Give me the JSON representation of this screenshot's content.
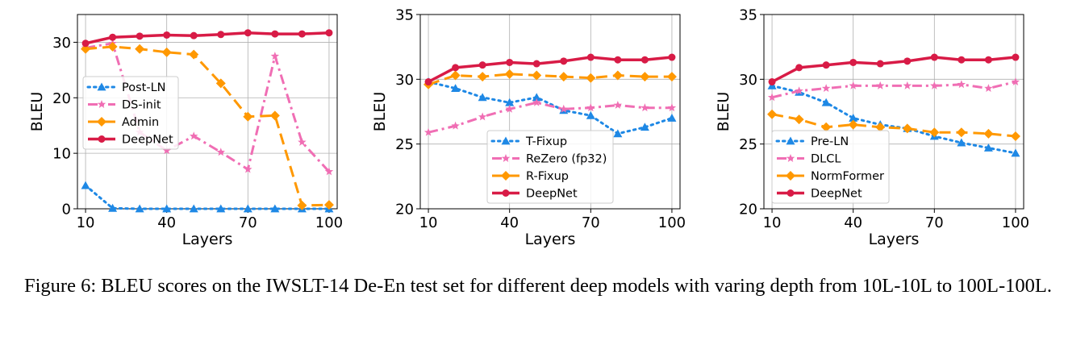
{
  "caption": "Figure 6: BLEU scores on the IWSLT-14 De-En test set for different deep models with varing depth from 10L-10L to 100L-100L.",
  "colors": {
    "blue": "#1e88e5",
    "pink": "#f06eb4",
    "orange": "#ff9800",
    "crimson": "#d81b46"
  },
  "chart_data": [
    {
      "type": "line",
      "xlabel": "Layers",
      "ylabel": "BLEU",
      "x": [
        10,
        20,
        30,
        40,
        50,
        60,
        70,
        80,
        90,
        100
      ],
      "xticks": [
        10,
        40,
        70,
        100
      ],
      "xticklabels": [
        "10",
        "40",
        "70",
        "100"
      ],
      "xlim": [
        7,
        103
      ],
      "ylim": [
        0,
        35
      ],
      "yticks": [
        0,
        10,
        20,
        30
      ],
      "yticklabels": [
        "0",
        "10",
        "20",
        "30"
      ],
      "legend": "center-left",
      "series": [
        {
          "name": "Post-LN",
          "style": "dotted",
          "marker": "triangle",
          "color": "#1e88e5",
          "values": [
            4.2,
            0.1,
            0.0,
            0.0,
            0.0,
            0.0,
            0.0,
            0.0,
            0.0,
            0.0
          ]
        },
        {
          "name": "DS-init",
          "style": "dashdot",
          "marker": "star",
          "color": "#f06eb4",
          "values": [
            29.0,
            29.8,
            13.8,
            10.5,
            13.1,
            10.2,
            7.1,
            27.5,
            12.0,
            6.7
          ]
        },
        {
          "name": "Admin",
          "style": "dashed",
          "marker": "diamond",
          "color": "#ff9800",
          "values": [
            28.8,
            29.2,
            28.8,
            28.2,
            27.8,
            22.6,
            16.6,
            16.8,
            0.6,
            0.7
          ]
        },
        {
          "name": "DeepNet",
          "style": "solid",
          "marker": "circle",
          "color": "#d81b46",
          "values": [
            29.8,
            30.9,
            31.1,
            31.3,
            31.2,
            31.4,
            31.7,
            31.5,
            31.5,
            31.7
          ]
        }
      ]
    },
    {
      "type": "line",
      "xlabel": "Layers",
      "ylabel": "BLEU",
      "x": [
        10,
        20,
        30,
        40,
        50,
        60,
        70,
        80,
        90,
        100
      ],
      "xticks": [
        10,
        40,
        70,
        100
      ],
      "xticklabels": [
        "10",
        "40",
        "70",
        "100"
      ],
      "xlim": [
        7,
        103
      ],
      "ylim": [
        20,
        35
      ],
      "yticks": [
        20,
        25,
        30,
        35
      ],
      "yticklabels": [
        "20",
        "25",
        "30",
        "35"
      ],
      "legend": "lower-center",
      "series": [
        {
          "name": "T-Fixup",
          "style": "dotted",
          "marker": "triangle",
          "color": "#1e88e5",
          "values": [
            29.8,
            29.3,
            28.6,
            28.2,
            28.6,
            27.6,
            27.2,
            25.8,
            26.3,
            27.0
          ]
        },
        {
          "name": "ReZero (fp32)",
          "style": "dashdot",
          "marker": "star",
          "color": "#f06eb4",
          "values": [
            25.9,
            26.4,
            27.1,
            27.7,
            28.2,
            27.7,
            27.8,
            28.0,
            27.8,
            27.8
          ]
        },
        {
          "name": "R-Fixup",
          "style": "dashed",
          "marker": "diamond",
          "color": "#ff9800",
          "values": [
            29.6,
            30.3,
            30.2,
            30.4,
            30.3,
            30.2,
            30.1,
            30.3,
            30.2,
            30.2
          ]
        },
        {
          "name": "DeepNet",
          "style": "solid",
          "marker": "circle",
          "color": "#d81b46",
          "values": [
            29.8,
            30.9,
            31.1,
            31.3,
            31.2,
            31.4,
            31.7,
            31.5,
            31.5,
            31.7
          ]
        }
      ]
    },
    {
      "type": "line",
      "xlabel": "Layers",
      "ylabel": "BLEU",
      "x": [
        10,
        20,
        30,
        40,
        50,
        60,
        70,
        80,
        90,
        100
      ],
      "xticks": [
        10,
        40,
        70,
        100
      ],
      "xticklabels": [
        "10",
        "40",
        "70",
        "100"
      ],
      "xlim": [
        7,
        103
      ],
      "ylim": [
        20,
        35
      ],
      "yticks": [
        20,
        25,
        30,
        35
      ],
      "yticklabels": [
        "20",
        "25",
        "30",
        "35"
      ],
      "legend": "lower-center",
      "series": [
        {
          "name": "Pre-LN",
          "style": "dotted",
          "marker": "triangle",
          "color": "#1e88e5",
          "values": [
            29.5,
            29.0,
            28.2,
            27.0,
            26.5,
            26.2,
            25.6,
            25.1,
            24.7,
            24.3
          ]
        },
        {
          "name": "DLCL",
          "style": "dashdot",
          "marker": "star",
          "color": "#f06eb4",
          "values": [
            28.6,
            29.1,
            29.3,
            29.5,
            29.5,
            29.5,
            29.5,
            29.6,
            29.3,
            29.8
          ]
        },
        {
          "name": "NormFormer",
          "style": "dashed",
          "marker": "diamond",
          "color": "#ff9800",
          "values": [
            27.3,
            26.9,
            26.3,
            26.5,
            26.3,
            26.2,
            25.9,
            25.9,
            25.8,
            25.6
          ]
        },
        {
          "name": "DeepNet",
          "style": "solid",
          "marker": "circle",
          "color": "#d81b46",
          "values": [
            29.8,
            30.9,
            31.1,
            31.3,
            31.2,
            31.4,
            31.7,
            31.5,
            31.5,
            31.7
          ]
        }
      ]
    }
  ]
}
